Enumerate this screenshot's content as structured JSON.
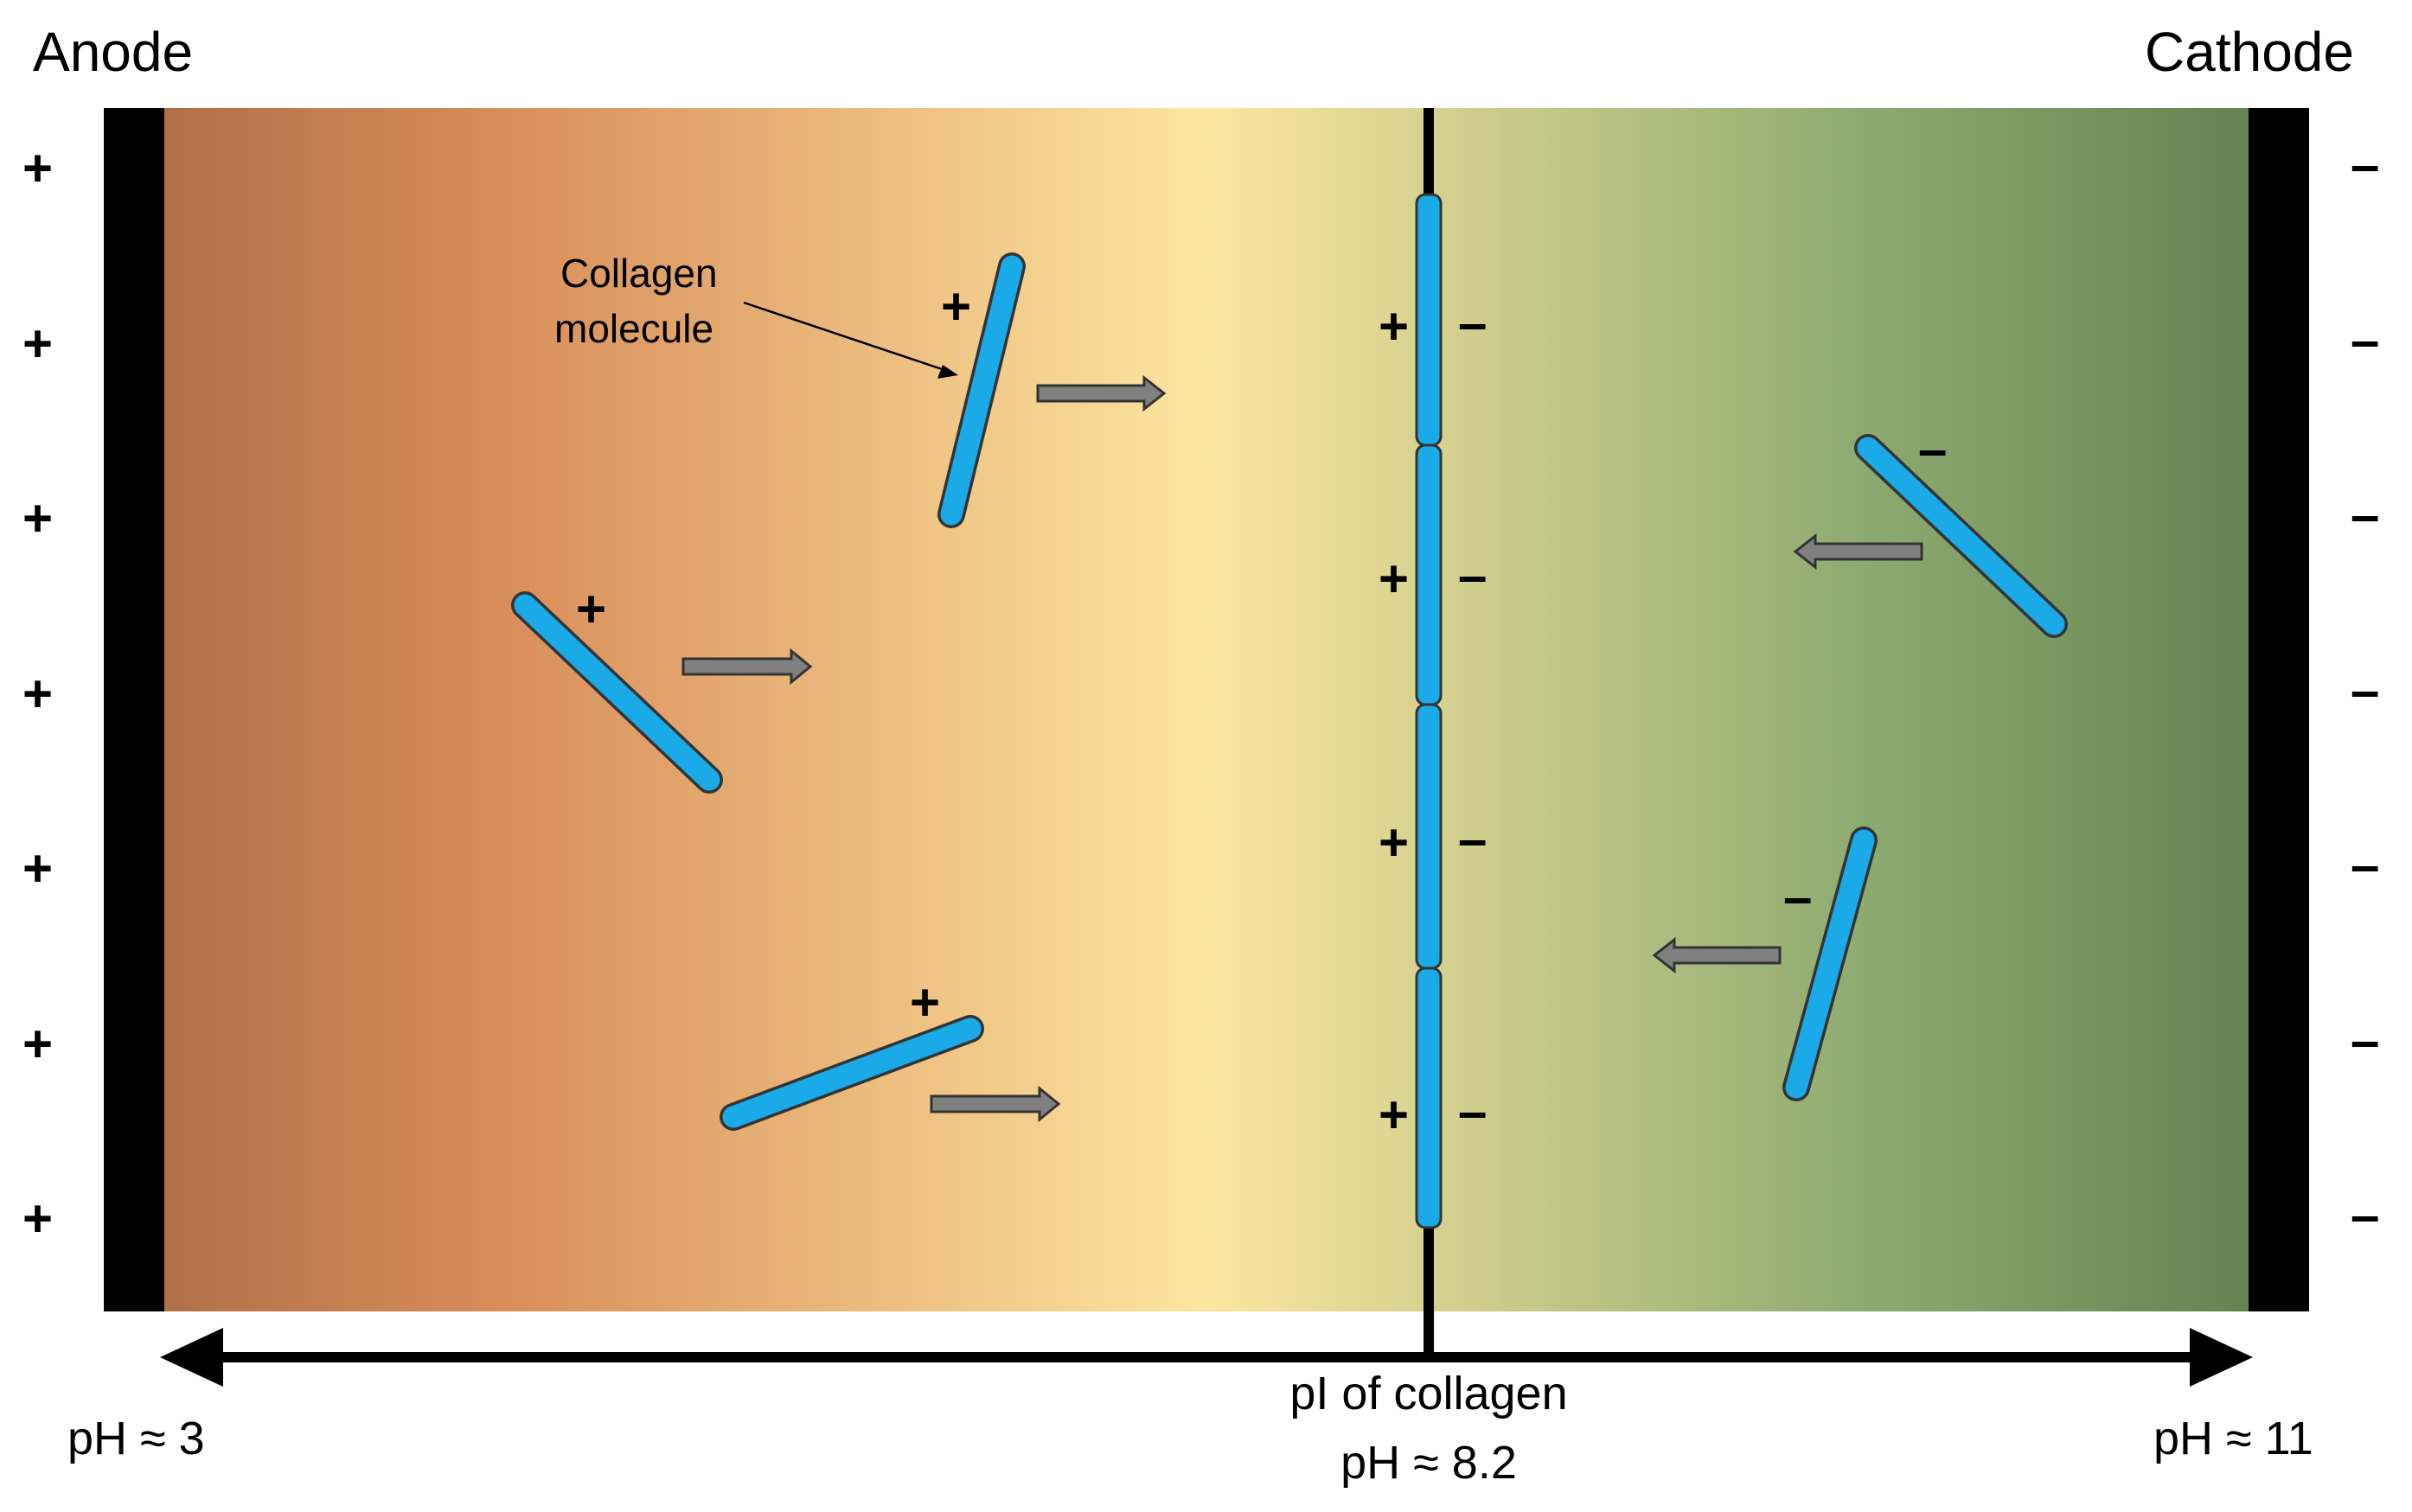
{
  "electrodes": {
    "left_label": "Anode",
    "right_label": "Cathode",
    "left_sign": "+",
    "right_sign": "–"
  },
  "annotation": {
    "line1": "Collagen",
    "line2": "molecule"
  },
  "axis": {
    "left_label": "pH ≈ 3",
    "right_label": "pH ≈ 11",
    "center_line1": "pI of collagen",
    "center_line2": "pH ≈ 8.2"
  },
  "charges": {
    "positive": "+",
    "negative": "–"
  },
  "colors": {
    "molecule": "#1aaae8",
    "arrow": "#808080",
    "gradient_acid": "#a96b45",
    "gradient_orange": "#d88d5a",
    "gradient_neutral": "#fde6a0",
    "gradient_base": "#5f7d4d",
    "electrode": "#000000"
  }
}
